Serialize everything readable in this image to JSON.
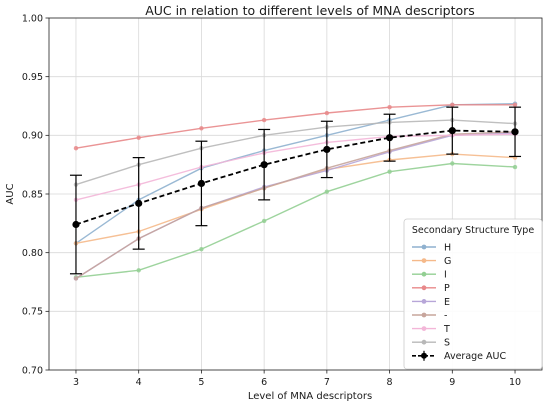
{
  "chart_data": {
    "type": "line",
    "title": "AUC in relation to different levels of MNA descriptors",
    "xlabel": "Level of MNA descriptors",
    "ylabel": "AUC",
    "x": [
      3,
      4,
      5,
      6,
      7,
      8,
      9,
      10
    ],
    "xlim": [
      2.57,
      10.43
    ],
    "ylim": [
      0.7,
      1.0
    ],
    "yticks": [
      "0.70",
      "0.75",
      "0.80",
      "0.85",
      "0.90",
      "0.95",
      "1.00"
    ],
    "xticks": [
      "3",
      "4",
      "5",
      "6",
      "7",
      "8",
      "9",
      "10"
    ],
    "grid": true,
    "legend": {
      "title": "Secondary Structure Type",
      "position": "lower-right"
    },
    "series": [
      {
        "name": "H",
        "color": "#8fb1cf",
        "values": [
          0.808,
          0.845,
          0.872,
          0.887,
          0.9,
          0.913,
          0.926,
          0.927
        ]
      },
      {
        "name": "G",
        "color": "#f5b98a",
        "values": [
          0.808,
          0.818,
          0.837,
          0.855,
          0.871,
          0.879,
          0.884,
          0.881
        ]
      },
      {
        "name": "I",
        "color": "#93cf93",
        "values": [
          0.779,
          0.785,
          0.803,
          0.827,
          0.852,
          0.869,
          0.876,
          0.873
        ]
      },
      {
        "name": "P",
        "color": "#e8888a",
        "values": [
          0.889,
          0.898,
          0.906,
          0.913,
          0.919,
          0.924,
          0.926,
          0.926
        ]
      },
      {
        "name": "E",
        "color": "#b7a6d8",
        "values": [
          0.778,
          0.812,
          0.838,
          0.856,
          0.87,
          0.886,
          0.9,
          0.902
        ]
      },
      {
        "name": "-",
        "color": "#c7a59c",
        "values": [
          0.778,
          0.812,
          0.838,
          0.855,
          0.872,
          0.887,
          0.901,
          0.903
        ]
      },
      {
        "name": "T",
        "color": "#f3b6d8",
        "values": [
          0.845,
          0.858,
          0.873,
          0.885,
          0.894,
          0.899,
          0.9,
          0.901
        ]
      },
      {
        "name": "S",
        "color": "#b8b8b8",
        "values": [
          0.858,
          0.875,
          0.889,
          0.9,
          0.907,
          0.911,
          0.913,
          0.91
        ]
      }
    ],
    "average": {
      "name": "Average AUC",
      "color": "#000000",
      "values": [
        0.824,
        0.842,
        0.859,
        0.875,
        0.888,
        0.898,
        0.904,
        0.903
      ],
      "errors": [
        0.042,
        0.039,
        0.036,
        0.03,
        0.024,
        0.02,
        0.02,
        0.021
      ]
    }
  }
}
